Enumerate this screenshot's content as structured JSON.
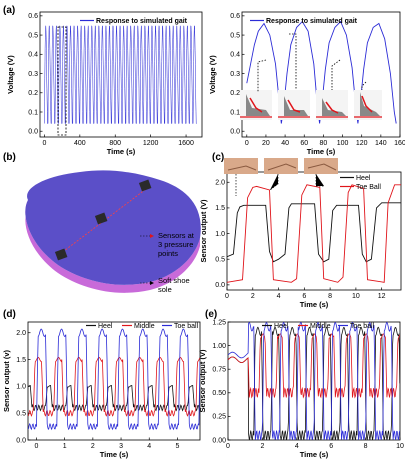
{
  "panels": {
    "a": "(a)",
    "b": "(b)",
    "c": "(c)",
    "d": "(d)",
    "e": "(e)"
  },
  "insole": {
    "sensors_label_1": "Sensors at",
    "sensors_label_2": "3 pressure",
    "sensors_label_3": "points",
    "sole_label_1": "Soft shoe",
    "sole_label_2": "sole"
  },
  "colors": {
    "blue": "#2b2bd6",
    "red": "#e0151b",
    "black": "#111111",
    "insole_top": "#5b4fc8",
    "insole_side": "#c86ad9"
  },
  "chart_data": [
    {
      "id": "a_left",
      "type": "line",
      "legend": [
        "Response to simulated gait"
      ],
      "xlabel": "Time (s)",
      "ylabel": "Voltage (V)",
      "xlim": [
        -50,
        1780
      ],
      "ylim": [
        -0.03,
        0.62
      ],
      "xticks": [
        0,
        400,
        800,
        1200,
        1600
      ],
      "yticks": [
        0.0,
        0.1,
        0.2,
        0.3,
        0.4,
        0.5,
        0.6
      ],
      "yticklabels": [
        "0.0",
        "0.1",
        "0.2",
        "0.3",
        "0.4",
        "0.5",
        "0.6"
      ],
      "series": [
        {
          "name": "Response to simulated gait",
          "color": "#2b2bd6",
          "period_s": 40,
          "min": 0.04,
          "max": 0.55,
          "plateau": 0.32,
          "duration_s": 1720
        }
      ]
    },
    {
      "id": "a_right",
      "type": "line",
      "legend": [
        "Response to simulated gait"
      ],
      "xlabel": "Time (s)",
      "ylabel": "Voltage (V)",
      "xlim": [
        -5,
        160
      ],
      "ylim": [
        -0.03,
        0.62
      ],
      "xticks": [
        0,
        20,
        40,
        60,
        80,
        100,
        120,
        140,
        160
      ],
      "xticklabels": [
        "0",
        "20",
        "40",
        "60",
        "80",
        "100",
        "120",
        "140",
        "160"
      ],
      "yticks": [
        0.0,
        0.1,
        0.2,
        0.3,
        0.4,
        0.5,
        0.6
      ],
      "yticklabels": [
        "0.0",
        "0.1",
        "0.2",
        "0.3",
        "0.4",
        "0.5",
        "0.6"
      ],
      "series": [
        {
          "name": "Response to simulated gait",
          "color": "#2b2bd6",
          "x": [
            0,
            4,
            8,
            12,
            18,
            24,
            30,
            34,
            36,
            38,
            42,
            46,
            52,
            58,
            64,
            70,
            74,
            76,
            78,
            82,
            86,
            92,
            98,
            104,
            110,
            114,
            116,
            118,
            122,
            126,
            132,
            138,
            144,
            150,
            154,
            156
          ],
          "y": [
            0.25,
            0.35,
            0.45,
            0.52,
            0.56,
            0.5,
            0.35,
            0.15,
            0.04,
            0.1,
            0.3,
            0.45,
            0.54,
            0.57,
            0.52,
            0.35,
            0.12,
            0.04,
            0.12,
            0.32,
            0.46,
            0.54,
            0.57,
            0.5,
            0.33,
            0.12,
            0.04,
            0.12,
            0.32,
            0.46,
            0.54,
            0.56,
            0.48,
            0.3,
            0.1,
            0.04
          ]
        }
      ]
    },
    {
      "id": "c",
      "type": "line",
      "legend": [
        "Heel",
        "Toe Ball"
      ],
      "xlabel": "Time (s)",
      "ylabel": "Sensor output (V)",
      "xlim": [
        0,
        13.5
      ],
      "ylim": [
        -0.1,
        2.2
      ],
      "xticks": [
        0,
        2,
        4,
        6,
        8,
        10,
        12
      ],
      "yticks": [
        0.0,
        0.5,
        1.0,
        1.5,
        2.0
      ],
      "yticklabels": [
        "0.0",
        "0.5",
        "1.0",
        "1.5",
        "2.0"
      ],
      "series": [
        {
          "name": "Heel",
          "color": "#111111",
          "x": [
            0,
            0.5,
            0.8,
            1.0,
            1.3,
            3.0,
            3.3,
            3.6,
            4.0,
            4.5,
            4.8,
            5.0,
            6.8,
            7.1,
            7.5,
            7.9,
            8.2,
            8.5,
            10.2,
            10.5,
            10.8,
            11.2,
            11.6,
            12.0,
            13.5
          ],
          "y": [
            0.55,
            0.6,
            1.4,
            1.52,
            1.55,
            1.55,
            0.65,
            0.45,
            0.5,
            0.6,
            1.5,
            1.58,
            1.58,
            0.6,
            0.45,
            0.5,
            1.45,
            1.55,
            1.55,
            0.6,
            0.45,
            0.5,
            1.5,
            1.6,
            1.6
          ]
        },
        {
          "name": "Toe Ball",
          "color": "#e0151b",
          "x": [
            0,
            1.2,
            1.6,
            2.0,
            2.3,
            3.3,
            3.6,
            5.0,
            5.4,
            5.8,
            6.2,
            7.2,
            7.5,
            8.6,
            9.0,
            9.4,
            9.7,
            10.6,
            10.9,
            12.2,
            12.5,
            13.0,
            13.5
          ],
          "y": [
            0.05,
            0.1,
            1.7,
            1.9,
            1.92,
            1.85,
            0.1,
            0.05,
            0.12,
            1.75,
            1.95,
            1.9,
            0.12,
            0.05,
            0.15,
            1.8,
            1.95,
            1.88,
            0.1,
            0.05,
            1.6,
            1.95,
            1.95
          ]
        }
      ]
    },
    {
      "id": "d",
      "type": "line",
      "legend": [
        "Heel",
        "Middle",
        "Toe ball"
      ],
      "xlabel": "Time (s)",
      "ylabel": "Sensor output (v)",
      "xlim": [
        -0.3,
        5.8
      ],
      "ylim": [
        0.0,
        2.2
      ],
      "xticks": [
        0,
        1,
        2,
        3,
        4,
        5
      ],
      "yticks": [
        0.0,
        0.5,
        1.0,
        1.5,
        2.0
      ],
      "yticklabels": [
        "0.0",
        "0.5",
        "1.0",
        "1.5",
        "2.0"
      ],
      "series": [
        {
          "name": "Heel",
          "color": "#111111",
          "period_s": 0.72,
          "base": 0.6,
          "peak": 1.0
        },
        {
          "name": "Middle",
          "color": "#e0151b",
          "period_s": 0.72,
          "base": 0.5,
          "peak": 1.5
        },
        {
          "name": "Toe ball",
          "color": "#2b2bd6",
          "period_s": 0.72,
          "base": 0.25,
          "peak": 2.0
        }
      ]
    },
    {
      "id": "e",
      "type": "line",
      "legend": [
        "Heel",
        "Middle",
        "Toe ball"
      ],
      "xlabel": "Time (s)",
      "ylabel": "Sensor output (V)",
      "xlim": [
        0,
        10
      ],
      "ylim": [
        0.0,
        1.25
      ],
      "xticks": [
        0,
        2,
        4,
        6,
        8,
        10
      ],
      "yticks": [
        0.0,
        0.25,
        0.5,
        0.75,
        1.0,
        1.25
      ],
      "yticklabels": [
        "0.00",
        "0.25",
        "0.50",
        "0.75",
        "1.00",
        "1.25"
      ],
      "series": [
        {
          "name": "Heel",
          "color": "#111111",
          "period_s": 1.0,
          "base": 0.05,
          "peak": 1.15
        },
        {
          "name": "Middle",
          "color": "#e0151b",
          "period_s": 1.0,
          "base": 0.5,
          "peak": 1.1
        },
        {
          "name": "Toe ball",
          "color": "#2b2bd6",
          "period_s": 1.0,
          "base": 0.05,
          "peak": 1.2
        }
      ]
    }
  ]
}
